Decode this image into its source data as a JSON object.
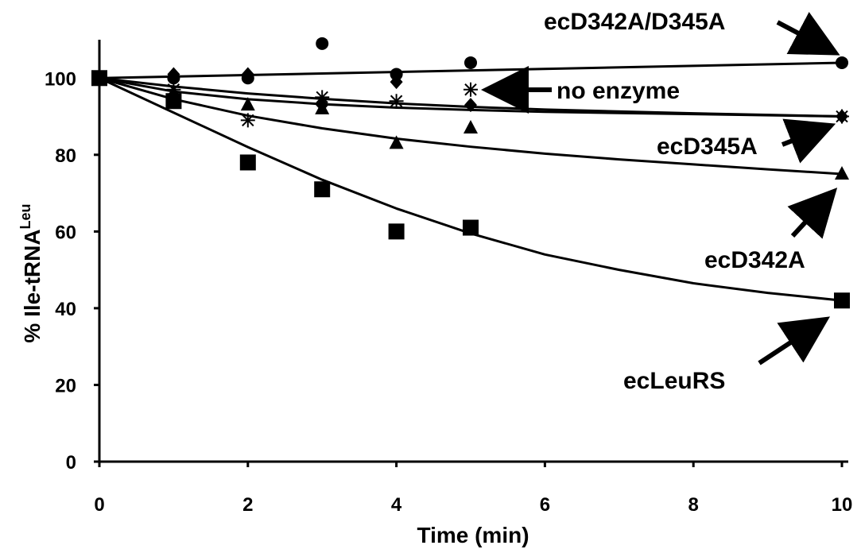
{
  "chart_data": {
    "type": "scatter",
    "title": "",
    "xlabel": "Time (min)",
    "ylabel_main": "% Ile-tRNA",
    "ylabel_sup": "Leu",
    "xlim": [
      0,
      10
    ],
    "ylim": [
      0,
      110
    ],
    "x_ticks": [
      "0",
      "2",
      "4",
      "6",
      "8",
      "10"
    ],
    "y_ticks": [
      "0",
      "20",
      "40",
      "60",
      "80",
      "100"
    ],
    "grid": false,
    "legend": "none",
    "series": [
      {
        "name": "ecD342A/D345A",
        "marker": "circle",
        "points": [
          [
            0,
            100
          ],
          [
            1,
            100
          ],
          [
            2,
            100
          ],
          [
            3,
            109
          ],
          [
            4,
            101
          ],
          [
            5,
            104
          ],
          [
            10,
            104
          ]
        ],
        "fit": [
          [
            0,
            100
          ],
          [
            10,
            104
          ]
        ]
      },
      {
        "name": "no enzyme",
        "marker": "asterisk",
        "points": [
          [
            0,
            100
          ],
          [
            1,
            97
          ],
          [
            2,
            89
          ],
          [
            3,
            95
          ],
          [
            4,
            94
          ],
          [
            5,
            97
          ],
          [
            10,
            90
          ]
        ],
        "fit": [
          [
            0,
            100
          ],
          [
            1,
            96.5
          ],
          [
            2,
            94.5
          ],
          [
            3,
            93.2
          ],
          [
            4,
            92.3
          ],
          [
            5,
            91.7
          ],
          [
            6,
            91.2
          ],
          [
            8,
            90.6
          ],
          [
            10,
            90
          ]
        ]
      },
      {
        "name": "ecD345A",
        "marker": "diamond",
        "points": [
          [
            0,
            100
          ],
          [
            1,
            101
          ],
          [
            2,
            101
          ],
          [
            3,
            93
          ],
          [
            4,
            99
          ],
          [
            5,
            93
          ],
          [
            10,
            90
          ]
        ],
        "fit": [
          [
            0,
            100
          ],
          [
            1,
            97.8
          ],
          [
            2,
            96
          ],
          [
            3,
            94.6
          ],
          [
            4,
            93.4
          ],
          [
            5,
            92.5
          ],
          [
            6,
            91.8
          ],
          [
            8,
            90.8
          ],
          [
            10,
            90
          ]
        ]
      },
      {
        "name": "ecD342A",
        "marker": "triangle",
        "points": [
          [
            0,
            100
          ],
          [
            1,
            96
          ],
          [
            2,
            93
          ],
          [
            3,
            92
          ],
          [
            4,
            83
          ],
          [
            5,
            87
          ],
          [
            10,
            75
          ]
        ],
        "fit": [
          [
            0,
            100
          ],
          [
            1,
            94.5
          ],
          [
            2,
            90.2
          ],
          [
            3,
            86.9
          ],
          [
            4,
            84.2
          ],
          [
            5,
            82.1
          ],
          [
            6,
            80.3
          ],
          [
            7,
            78.8
          ],
          [
            8,
            77.5
          ],
          [
            9,
            76.2
          ],
          [
            10,
            75
          ]
        ]
      },
      {
        "name": "ecLeuRS",
        "marker": "square",
        "points": [
          [
            0,
            100
          ],
          [
            1,
            94
          ],
          [
            2,
            78
          ],
          [
            3,
            71
          ],
          [
            4,
            60
          ],
          [
            5,
            61
          ],
          [
            10,
            42
          ]
        ],
        "fit": [
          [
            0,
            100
          ],
          [
            0.5,
            95.5
          ],
          [
            1,
            91
          ],
          [
            2,
            82
          ],
          [
            3,
            73.5
          ],
          [
            4,
            66
          ],
          [
            5,
            59.5
          ],
          [
            6,
            54
          ],
          [
            7,
            50
          ],
          [
            8,
            46.5
          ],
          [
            9,
            44
          ],
          [
            10,
            42
          ]
        ]
      }
    ],
    "annotations": [
      {
        "text": "ecD342A/D345A",
        "target": [
          10,
          104
        ]
      },
      {
        "text": "no enzyme",
        "target": [
          5,
          97
        ]
      },
      {
        "text": "ecD345A",
        "target": [
          10,
          90
        ]
      },
      {
        "text": "ecD342A",
        "target": [
          10,
          75
        ]
      },
      {
        "text": "ecLeuRS",
        "target": [
          10,
          42
        ]
      }
    ]
  }
}
